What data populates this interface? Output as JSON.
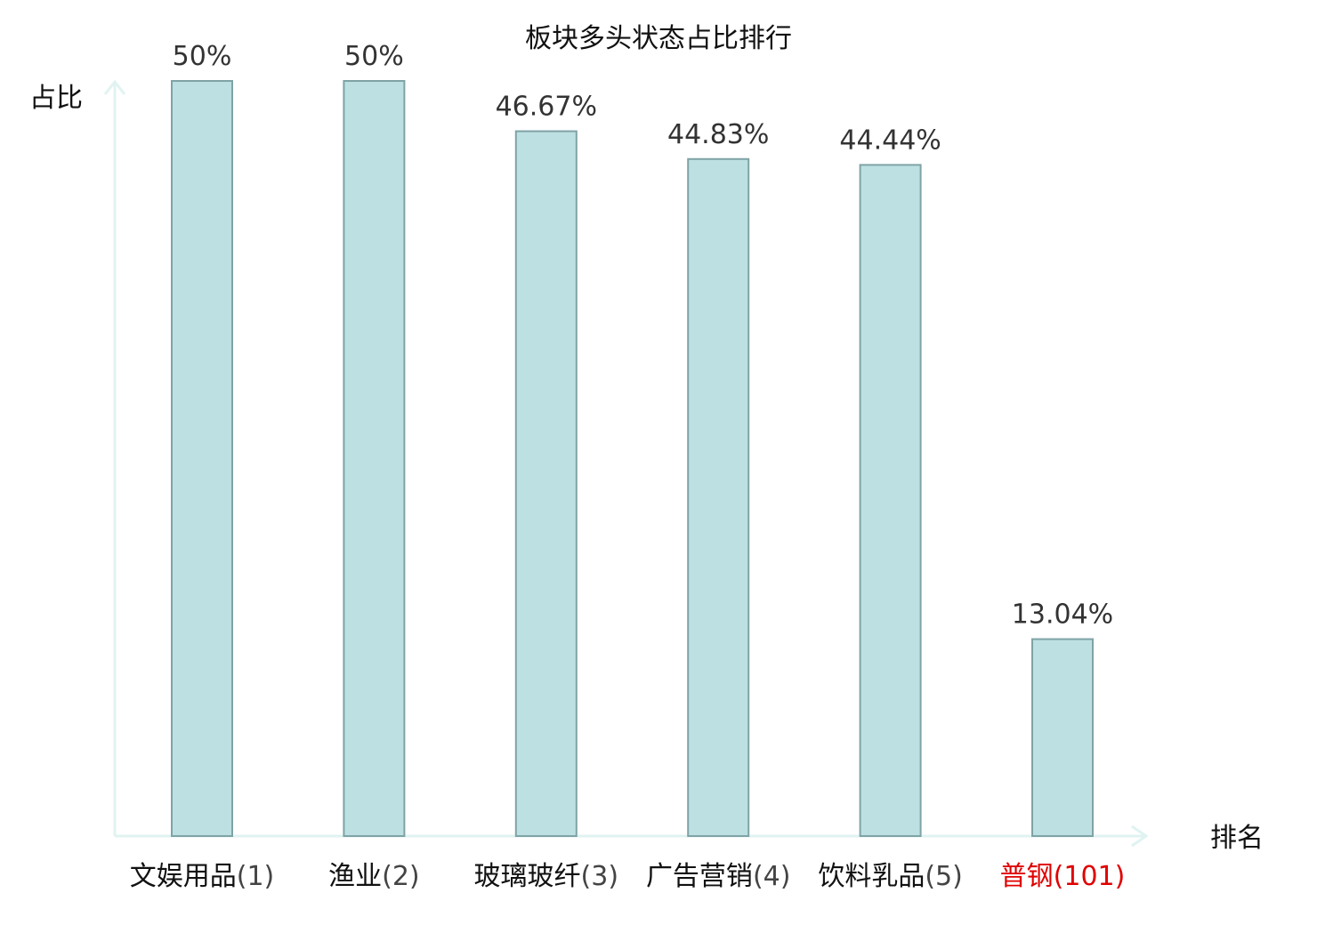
{
  "chart_data": {
    "type": "bar",
    "title": "板块多头状态占比排行",
    "ylabel": "占比",
    "xlabel": "排名",
    "ylim": [
      0,
      50
    ],
    "categories": [
      {
        "name": "文娱用品",
        "rank": "(1)",
        "highlight": false
      },
      {
        "name": "渔业",
        "rank": "(2)",
        "highlight": false
      },
      {
        "name": "玻璃玻纤",
        "rank": "(3)",
        "highlight": false
      },
      {
        "name": "广告营销",
        "rank": "(4)",
        "highlight": false
      },
      {
        "name": "饮料乳品",
        "rank": "(5)",
        "highlight": false
      },
      {
        "name": "普钢",
        "rank": "(101)",
        "highlight": true
      }
    ],
    "values": [
      50,
      50,
      46.67,
      44.83,
      44.44,
      13.04
    ],
    "value_labels": [
      "50%",
      "50%",
      "46.67%",
      "44.83%",
      "44.44%",
      "13.04%"
    ],
    "grid": false,
    "legend": "none"
  },
  "colors": {
    "bar_fill": "#bde0e3",
    "bar_stroke": "#7fa3a6",
    "axis": "#e0f3f1",
    "text": "#111111",
    "rank_text": "#444444",
    "highlight": "#e00000"
  }
}
